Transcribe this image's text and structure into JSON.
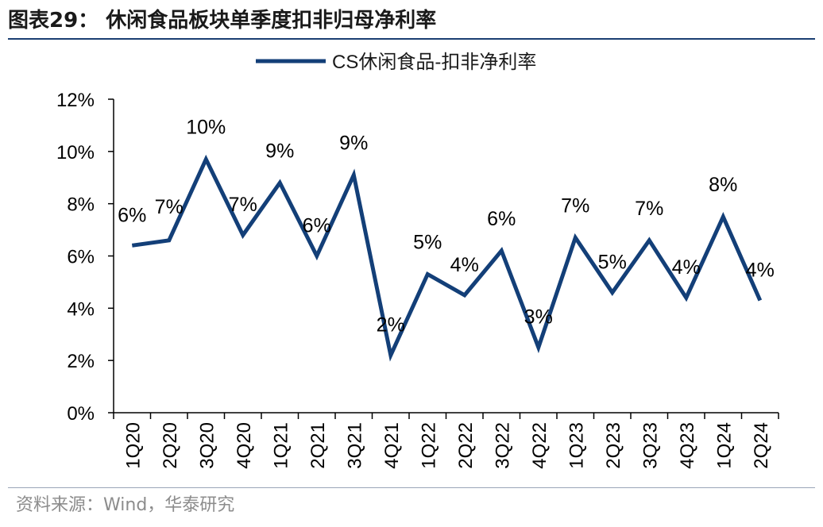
{
  "header": {
    "title": "图表29： 休闲食品板块单季度扣非归母净利率"
  },
  "footer": {
    "source": "资料来源：Wind，华泰研究"
  },
  "chart_data": {
    "type": "line",
    "title": "图表29： 休闲食品板块单季度扣非归母净利率",
    "xlabel": "",
    "ylabel": "",
    "categories": [
      "1Q20",
      "2Q20",
      "3Q20",
      "4Q20",
      "1Q21",
      "2Q21",
      "3Q21",
      "4Q21",
      "1Q22",
      "2Q22",
      "3Q22",
      "4Q22",
      "1Q23",
      "2Q23",
      "3Q23",
      "4Q23",
      "1Q24",
      "2Q24"
    ],
    "series": [
      {
        "name": "CS休闲食品-扣非净利率",
        "values": [
          6.4,
          6.6,
          9.7,
          6.8,
          8.8,
          6.0,
          9.1,
          2.2,
          5.3,
          4.5,
          6.2,
          2.5,
          6.7,
          4.6,
          6.6,
          4.4,
          7.5,
          4.3
        ],
        "data_labels": [
          "6%",
          "7%",
          "10%",
          "7%",
          "9%",
          "6%",
          "9%",
          "2%",
          "5%",
          "4%",
          "6%",
          "3%",
          "7%",
          "5%",
          "7%",
          "4%",
          "8%",
          "4%"
        ]
      }
    ],
    "ylim": [
      0,
      12
    ],
    "yticks": [
      0,
      2,
      4,
      6,
      8,
      10,
      12
    ],
    "ytick_labels": [
      "0%",
      "2%",
      "4%",
      "6%",
      "8%",
      "10%",
      "12%"
    ],
    "legend_position": "top-center",
    "grid": false,
    "line_color": "#133f78"
  }
}
